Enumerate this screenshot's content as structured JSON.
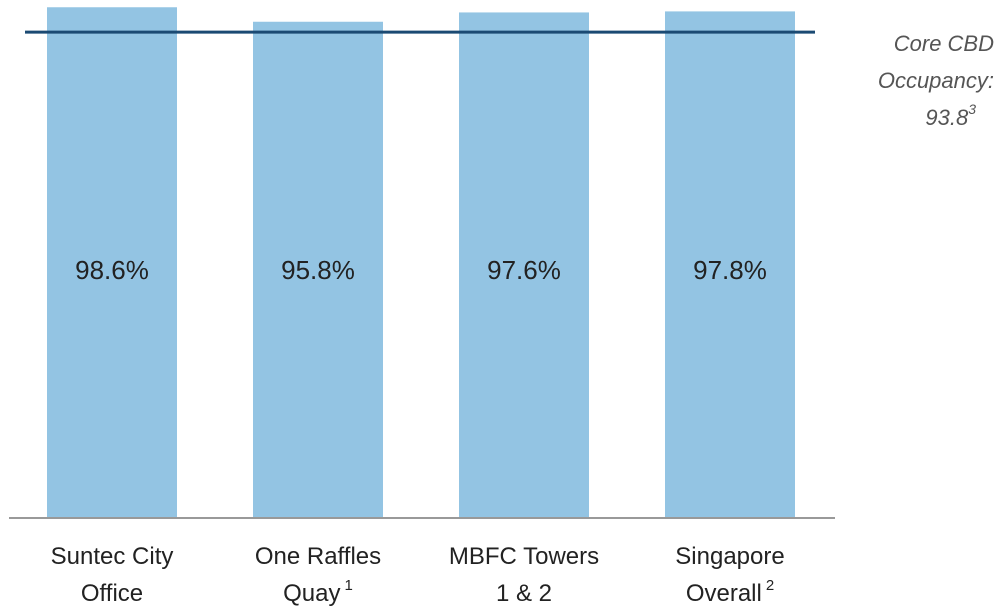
{
  "chart_data": {
    "type": "bar",
    "categories": [
      [
        "Suntec City",
        "Office"
      ],
      [
        "One Raffles",
        "Quay"
      ],
      [
        "MBFC Towers",
        "1 & 2"
      ],
      [
        "Singapore",
        "Overall"
      ]
    ],
    "category_notes": [
      null,
      "1",
      null,
      "2"
    ],
    "values": [
      98.6,
      95.8,
      97.6,
      97.8
    ],
    "value_labels": [
      "98.6%",
      "95.8%",
      "97.6%",
      "97.8%"
    ],
    "color": "#93c4e3",
    "ylim": [
      0,
      100
    ],
    "reference_line": {
      "label_lines": [
        "Core CBD",
        "Occupancy:"
      ],
      "value": 93.8,
      "note": "3",
      "color": "#1b4a73"
    }
  }
}
